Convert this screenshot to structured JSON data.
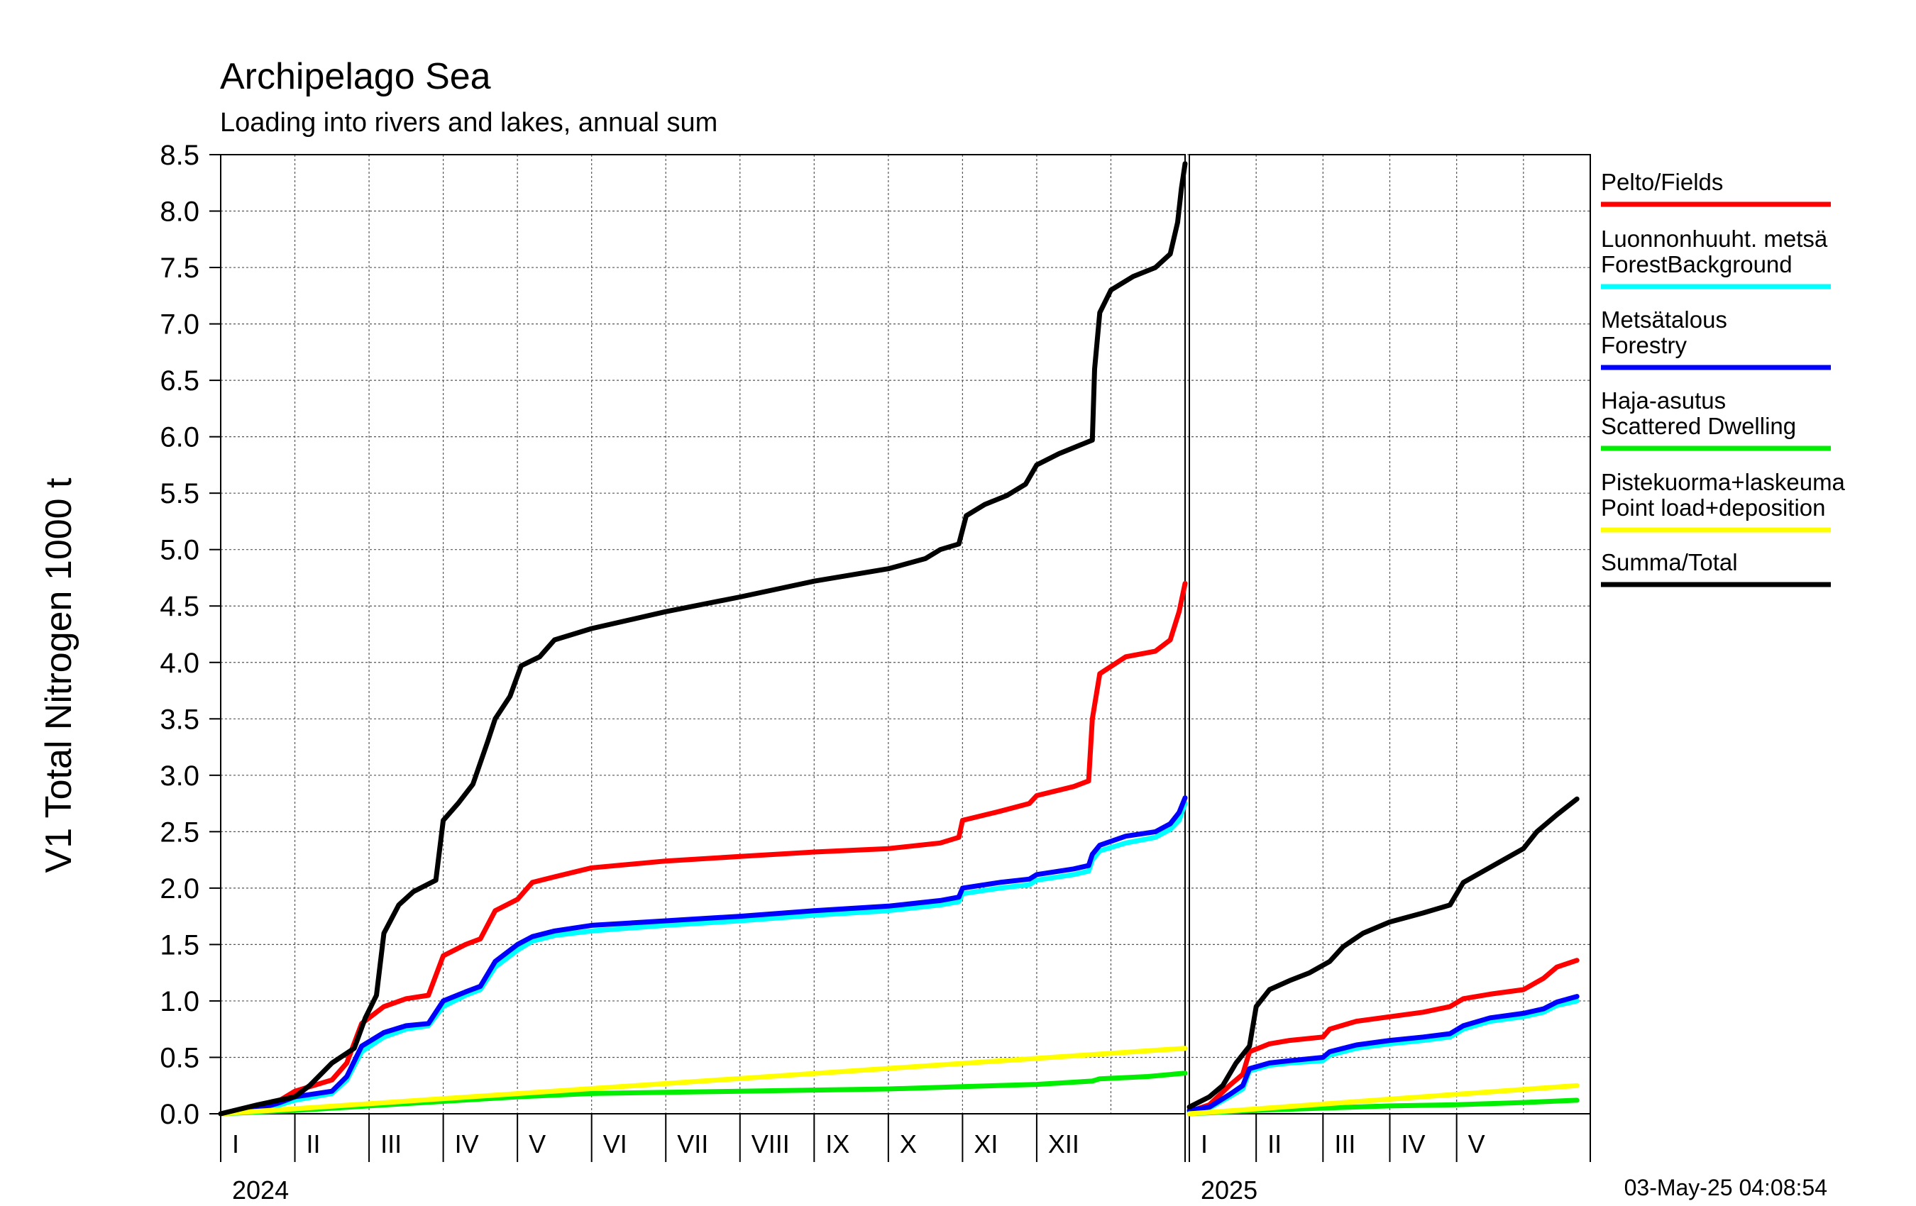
{
  "title": "Archipelago Sea",
  "subtitle": "Loading into rivers and lakes, annual sum",
  "timestamp": "03-May-25 04:08:54",
  "chart_data": {
    "type": "line",
    "ylabel": "V1 Total Nitrogen 1000 t",
    "ylim": [
      0,
      8.5
    ],
    "yticks": [
      "0.0",
      "0.5",
      "1.0",
      "1.5",
      "2.0",
      "2.5",
      "3.0",
      "3.5",
      "4.0",
      "4.5",
      "5.0",
      "5.5",
      "6.0",
      "6.5",
      "7.0",
      "7.5",
      "8.0",
      "8.5"
    ],
    "grid": true,
    "legend_position": "right",
    "x_unit": "months",
    "xlim": [
      0,
      17
    ],
    "years": [
      {
        "label": "2024",
        "start_month": 0,
        "end_month": 12
      },
      {
        "label": "2025",
        "start_month": 12,
        "end_month": 17
      }
    ],
    "month_labels_2024": [
      "I",
      "II",
      "III",
      "IV",
      "V",
      "VI",
      "VII",
      "VIII",
      "IX",
      "X",
      "XI",
      "XII"
    ],
    "month_labels_2025": [
      "I",
      "II",
      "III",
      "IV",
      "V"
    ],
    "series": [
      {
        "name": "Pelto/Fields",
        "color": "#ff0000",
        "points_2024": [
          [
            0,
            0
          ],
          [
            0.5,
            0.05
          ],
          [
            0.8,
            0.12
          ],
          [
            1.0,
            0.2
          ],
          [
            1.5,
            0.3
          ],
          [
            1.7,
            0.45
          ],
          [
            1.9,
            0.8
          ],
          [
            2.2,
            0.95
          ],
          [
            2.5,
            1.02
          ],
          [
            2.8,
            1.05
          ],
          [
            3.0,
            1.4
          ],
          [
            3.3,
            1.5
          ],
          [
            3.5,
            1.55
          ],
          [
            3.7,
            1.8
          ],
          [
            4.0,
            1.9
          ],
          [
            4.2,
            2.05
          ],
          [
            4.5,
            2.1
          ],
          [
            5.0,
            2.18
          ],
          [
            6.0,
            2.24
          ],
          [
            7.0,
            2.28
          ],
          [
            8.0,
            2.32
          ],
          [
            9.0,
            2.35
          ],
          [
            9.7,
            2.4
          ],
          [
            9.95,
            2.45
          ],
          [
            10.0,
            2.6
          ],
          [
            10.5,
            2.68
          ],
          [
            10.9,
            2.75
          ],
          [
            11.0,
            2.82
          ],
          [
            11.5,
            2.9
          ],
          [
            11.7,
            2.95
          ],
          [
            11.75,
            3.5
          ],
          [
            11.85,
            3.9
          ],
          [
            12.2,
            4.05
          ],
          [
            12.6,
            4.1
          ],
          [
            12.8,
            4.2
          ],
          [
            12.92,
            4.45
          ],
          [
            13.0,
            4.7
          ]
        ],
        "points_2025": [
          [
            0,
            0.02
          ],
          [
            0.3,
            0.08
          ],
          [
            0.6,
            0.25
          ],
          [
            0.8,
            0.35
          ],
          [
            0.9,
            0.55
          ],
          [
            1.2,
            0.62
          ],
          [
            1.5,
            0.65
          ],
          [
            2.0,
            0.68
          ],
          [
            2.1,
            0.75
          ],
          [
            2.5,
            0.82
          ],
          [
            3.0,
            0.86
          ],
          [
            3.5,
            0.9
          ],
          [
            3.9,
            0.95
          ],
          [
            4.1,
            1.02
          ],
          [
            4.5,
            1.06
          ],
          [
            5.0,
            1.1
          ],
          [
            5.3,
            1.2
          ],
          [
            5.5,
            1.3
          ],
          [
            5.8,
            1.36
          ]
        ]
      },
      {
        "name": "Luonnonhuuht. metsä ForestBackground",
        "color": "#00ffff",
        "points_2024": [
          [
            0,
            0
          ],
          [
            0.5,
            0.03
          ],
          [
            0.8,
            0.08
          ],
          [
            1.0,
            0.12
          ],
          [
            1.5,
            0.18
          ],
          [
            1.7,
            0.3
          ],
          [
            1.9,
            0.55
          ],
          [
            2.2,
            0.68
          ],
          [
            2.5,
            0.75
          ],
          [
            2.8,
            0.78
          ],
          [
            3.0,
            0.95
          ],
          [
            3.3,
            1.05
          ],
          [
            3.5,
            1.1
          ],
          [
            3.7,
            1.3
          ],
          [
            4.0,
            1.45
          ],
          [
            4.2,
            1.53
          ],
          [
            4.5,
            1.58
          ],
          [
            5.0,
            1.62
          ],
          [
            6.0,
            1.67
          ],
          [
            7.0,
            1.71
          ],
          [
            8.0,
            1.76
          ],
          [
            9.0,
            1.8
          ],
          [
            9.7,
            1.85
          ],
          [
            9.95,
            1.88
          ],
          [
            10.0,
            1.95
          ],
          [
            10.5,
            2.0
          ],
          [
            10.9,
            2.03
          ],
          [
            11.0,
            2.07
          ],
          [
            11.5,
            2.12
          ],
          [
            11.7,
            2.15
          ],
          [
            11.75,
            2.25
          ],
          [
            11.85,
            2.33
          ],
          [
            12.2,
            2.4
          ],
          [
            12.6,
            2.45
          ],
          [
            12.8,
            2.52
          ],
          [
            12.92,
            2.6
          ],
          [
            13.0,
            2.75
          ]
        ],
        "points_2025": [
          [
            0,
            0.02
          ],
          [
            0.3,
            0.05
          ],
          [
            0.6,
            0.15
          ],
          [
            0.8,
            0.22
          ],
          [
            0.9,
            0.38
          ],
          [
            1.2,
            0.43
          ],
          [
            1.5,
            0.45
          ],
          [
            2.0,
            0.47
          ],
          [
            2.1,
            0.52
          ],
          [
            2.5,
            0.58
          ],
          [
            3.0,
            0.62
          ],
          [
            3.5,
            0.65
          ],
          [
            3.9,
            0.68
          ],
          [
            4.1,
            0.75
          ],
          [
            4.5,
            0.82
          ],
          [
            5.0,
            0.86
          ],
          [
            5.3,
            0.9
          ],
          [
            5.5,
            0.96
          ],
          [
            5.8,
            1.0
          ]
        ]
      },
      {
        "name": "Metsätalous Forestry",
        "color": "#0000ff",
        "points_2024": [
          [
            0,
            0
          ],
          [
            0.5,
            0.04
          ],
          [
            0.8,
            0.1
          ],
          [
            1.0,
            0.15
          ],
          [
            1.5,
            0.2
          ],
          [
            1.7,
            0.33
          ],
          [
            1.9,
            0.6
          ],
          [
            2.2,
            0.72
          ],
          [
            2.5,
            0.78
          ],
          [
            2.8,
            0.8
          ],
          [
            3.0,
            1.0
          ],
          [
            3.3,
            1.08
          ],
          [
            3.5,
            1.13
          ],
          [
            3.7,
            1.35
          ],
          [
            4.0,
            1.5
          ],
          [
            4.2,
            1.57
          ],
          [
            4.5,
            1.62
          ],
          [
            5.0,
            1.67
          ],
          [
            6.0,
            1.71
          ],
          [
            7.0,
            1.75
          ],
          [
            8.0,
            1.8
          ],
          [
            9.0,
            1.84
          ],
          [
            9.7,
            1.89
          ],
          [
            9.95,
            1.92
          ],
          [
            10.0,
            2.0
          ],
          [
            10.5,
            2.05
          ],
          [
            10.9,
            2.08
          ],
          [
            11.0,
            2.12
          ],
          [
            11.5,
            2.17
          ],
          [
            11.7,
            2.2
          ],
          [
            11.75,
            2.3
          ],
          [
            11.85,
            2.38
          ],
          [
            12.2,
            2.46
          ],
          [
            12.6,
            2.5
          ],
          [
            12.8,
            2.57
          ],
          [
            12.92,
            2.67
          ],
          [
            13.0,
            2.8
          ]
        ],
        "points_2025": [
          [
            0,
            0.03
          ],
          [
            0.3,
            0.06
          ],
          [
            0.6,
            0.17
          ],
          [
            0.8,
            0.25
          ],
          [
            0.9,
            0.4
          ],
          [
            1.2,
            0.45
          ],
          [
            1.5,
            0.47
          ],
          [
            2.0,
            0.5
          ],
          [
            2.1,
            0.55
          ],
          [
            2.5,
            0.61
          ],
          [
            3.0,
            0.65
          ],
          [
            3.5,
            0.68
          ],
          [
            3.9,
            0.71
          ],
          [
            4.1,
            0.78
          ],
          [
            4.5,
            0.85
          ],
          [
            5.0,
            0.89
          ],
          [
            5.3,
            0.93
          ],
          [
            5.5,
            0.99
          ],
          [
            5.8,
            1.04
          ]
        ]
      },
      {
        "name": "Haja-asutus Scattered Dwelling",
        "color": "#00ee00",
        "points_2024": [
          [
            0,
            0
          ],
          [
            1.0,
            0.03
          ],
          [
            2.0,
            0.07
          ],
          [
            3.0,
            0.11
          ],
          [
            4.0,
            0.15
          ],
          [
            5.0,
            0.18
          ],
          [
            6.0,
            0.19
          ],
          [
            7.0,
            0.2
          ],
          [
            8.0,
            0.21
          ],
          [
            9.0,
            0.22
          ],
          [
            10.0,
            0.24
          ],
          [
            11.0,
            0.26
          ],
          [
            11.75,
            0.29
          ],
          [
            11.85,
            0.31
          ],
          [
            12.5,
            0.33
          ],
          [
            13.0,
            0.36
          ]
        ],
        "points_2025": [
          [
            0,
            0.0
          ],
          [
            1.0,
            0.03
          ],
          [
            2.0,
            0.05
          ],
          [
            3.0,
            0.07
          ],
          [
            4.0,
            0.08
          ],
          [
            5.0,
            0.1
          ],
          [
            5.8,
            0.12
          ]
        ]
      },
      {
        "name": "Pistekuorma+laskeuma Point load+deposition",
        "color": "#ffff00",
        "points_2024": [
          [
            0,
            0
          ],
          [
            13.0,
            0.58
          ]
        ],
        "points_2025": [
          [
            0,
            0.0
          ],
          [
            5.8,
            0.25
          ]
        ]
      },
      {
        "name": "Summa/Total",
        "color": "#000000",
        "points_2024": [
          [
            0,
            0
          ],
          [
            0.5,
            0.08
          ],
          [
            1.0,
            0.15
          ],
          [
            1.2,
            0.25
          ],
          [
            1.5,
            0.45
          ],
          [
            1.8,
            0.58
          ],
          [
            1.95,
            0.85
          ],
          [
            2.1,
            1.05
          ],
          [
            2.2,
            1.6
          ],
          [
            2.4,
            1.85
          ],
          [
            2.6,
            1.97
          ],
          [
            2.9,
            2.07
          ],
          [
            3.0,
            2.6
          ],
          [
            3.2,
            2.75
          ],
          [
            3.4,
            2.92
          ],
          [
            3.6,
            3.3
          ],
          [
            3.7,
            3.5
          ],
          [
            3.9,
            3.7
          ],
          [
            4.05,
            3.97
          ],
          [
            4.3,
            4.05
          ],
          [
            4.5,
            4.2
          ],
          [
            5.0,
            4.3
          ],
          [
            6.0,
            4.45
          ],
          [
            7.0,
            4.58
          ],
          [
            8.0,
            4.72
          ],
          [
            9.0,
            4.83
          ],
          [
            9.5,
            4.92
          ],
          [
            9.7,
            5.0
          ],
          [
            9.95,
            5.05
          ],
          [
            10.05,
            5.3
          ],
          [
            10.3,
            5.4
          ],
          [
            10.6,
            5.48
          ],
          [
            10.85,
            5.58
          ],
          [
            11.0,
            5.75
          ],
          [
            11.3,
            5.85
          ],
          [
            11.6,
            5.93
          ],
          [
            11.75,
            5.97
          ],
          [
            11.78,
            6.6
          ],
          [
            11.85,
            7.1
          ],
          [
            12.0,
            7.3
          ],
          [
            12.3,
            7.42
          ],
          [
            12.6,
            7.5
          ],
          [
            12.8,
            7.62
          ],
          [
            12.9,
            7.9
          ],
          [
            12.95,
            8.2
          ],
          [
            13.0,
            8.42
          ]
        ],
        "points_2025": [
          [
            0,
            0.06
          ],
          [
            0.3,
            0.15
          ],
          [
            0.5,
            0.25
          ],
          [
            0.7,
            0.45
          ],
          [
            0.9,
            0.6
          ],
          [
            1.0,
            0.95
          ],
          [
            1.2,
            1.1
          ],
          [
            1.5,
            1.18
          ],
          [
            1.8,
            1.25
          ],
          [
            2.1,
            1.35
          ],
          [
            2.3,
            1.48
          ],
          [
            2.6,
            1.6
          ],
          [
            3.0,
            1.7
          ],
          [
            3.5,
            1.78
          ],
          [
            3.9,
            1.85
          ],
          [
            4.1,
            2.05
          ],
          [
            4.4,
            2.15
          ],
          [
            4.7,
            2.25
          ],
          [
            5.0,
            2.35
          ],
          [
            5.2,
            2.5
          ],
          [
            5.5,
            2.65
          ],
          [
            5.8,
            2.79
          ]
        ]
      }
    ]
  }
}
